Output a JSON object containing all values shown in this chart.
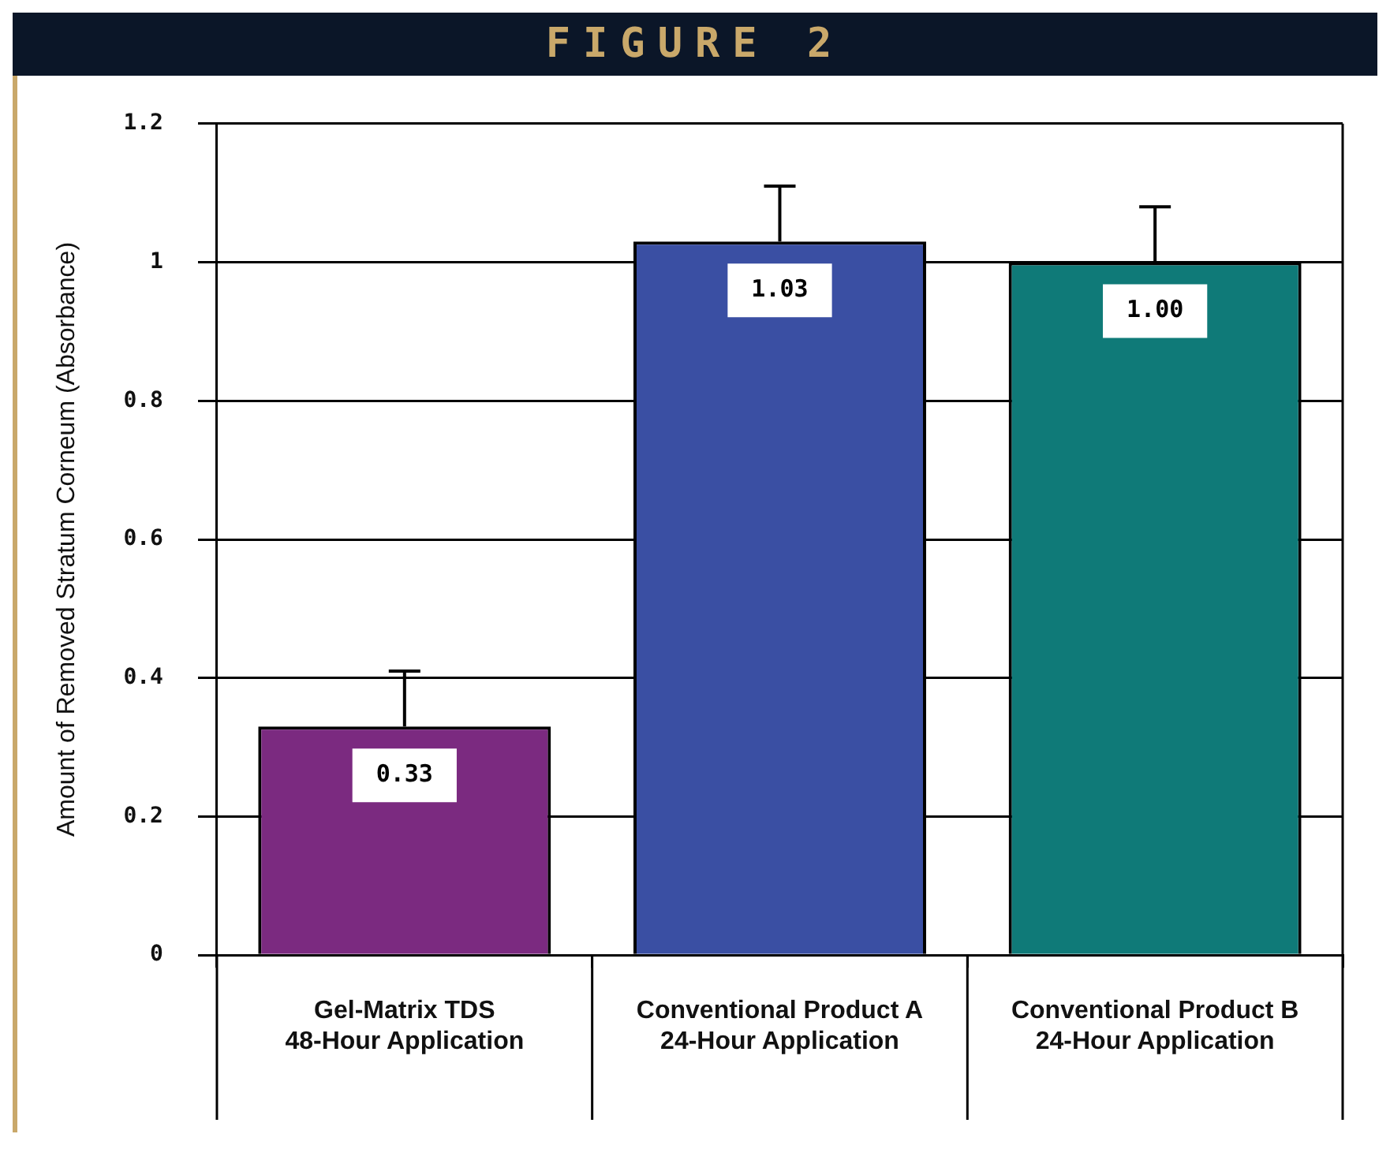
{
  "chart_data": {
    "type": "bar",
    "title": "FIGURE 2",
    "ylabel": "Amount of Removed Stratum Corneum (Absorbance)",
    "categories": [
      "Gel-Matrix TDS\n48-Hour Application",
      "Conventional Product A\n24-Hour Application",
      "Conventional Product B\n24-Hour Application"
    ],
    "values": [
      0.33,
      1.03,
      1.0
    ],
    "colors": [
      "#7b2a80",
      "#3a4fa3",
      "#0f7a78"
    ],
    "errors": [
      [
        0.33,
        0.41
      ],
      [
        1.03,
        1.11
      ],
      [
        1.0,
        1.08
      ]
    ],
    "value_labels": [
      "0.33",
      "1.03",
      "1.00"
    ],
    "ylim": [
      0,
      1.2
    ],
    "yticks": [
      0,
      0.2,
      0.4,
      0.6,
      0.8,
      1,
      1.2
    ],
    "grid": "y",
    "legend": false
  }
}
